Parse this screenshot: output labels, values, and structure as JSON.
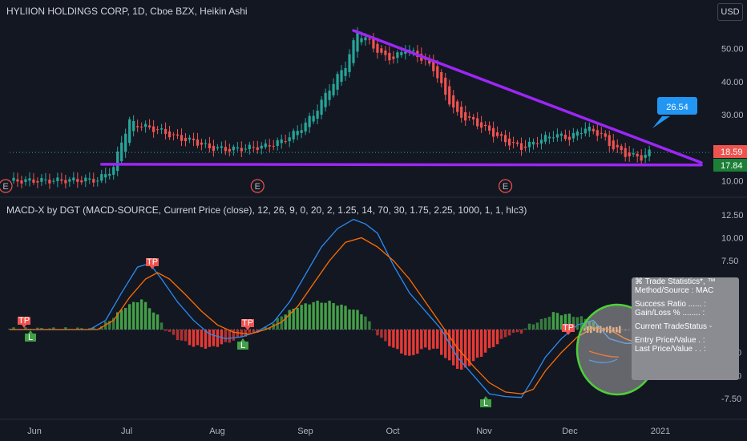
{
  "header": {
    "title": "HYLIION HOLDINGS CORP, 1D, Cboe BZX, Heikin Ashi",
    "currency": "USD"
  },
  "indicator": {
    "title": "MACD-X by DGT (MACD-SOURCE, Current Price (close), 12, 26, 9, 0, 20, 2, 1.25, 14, 70, 30, 1.75, 2.25, 1000, 1, 1, hlc3)"
  },
  "colors": {
    "background": "#131722",
    "up_candle": "#26a69a",
    "down_candle": "#ef5350",
    "trendline": "#9c27f5",
    "macd_line": "#2a8bf2",
    "signal_line": "#ff6d00",
    "hist_up": "#43a047",
    "hist_down": "#e53935",
    "callout": "#2196f3",
    "circle": "#4cd137"
  },
  "price_tags": {
    "last": "18.59",
    "support": "17.84",
    "callout": "26.54"
  },
  "stats_panel": {
    "lines": [
      "⌘ Trade Statistics*, ™",
      "Method/Source : MAC",
      "",
      "Success Ratio ...... :",
      "Gain/Loss % ........ :",
      "",
      "Current TradeStatus -",
      "",
      "Entry Price/Value . :",
      "Last Price/Value . . :"
    ]
  },
  "markers": {
    "tp": "TP",
    "long": "L",
    "short": "SL",
    "earnings": "E"
  },
  "chart_data": [
    {
      "type": "candlestick",
      "title": "HYLIION HOLDINGS CORP, 1D, Cboe BZX, Heikin Ashi",
      "x_ticks": [
        "Jun",
        "Jul",
        "Aug",
        "Sep",
        "Oct",
        "Nov",
        "Dec",
        "2021"
      ],
      "y_ticks": [
        "10.00",
        "20.00",
        "30.00",
        "40.00",
        "50.00"
      ],
      "ylim": [
        5,
        58
      ],
      "close_path": [
        [
          0,
          10.0
        ],
        [
          12,
          10.1
        ],
        [
          22,
          10.3
        ],
        [
          24,
          12
        ],
        [
          26,
          14
        ],
        [
          28,
          22
        ],
        [
          30,
          28
        ],
        [
          32,
          27
        ],
        [
          35,
          26
        ],
        [
          38,
          25
        ],
        [
          42,
          23
        ],
        [
          46,
          22
        ],
        [
          50,
          20
        ],
        [
          55,
          19.5
        ],
        [
          60,
          20
        ],
        [
          64,
          20.5
        ],
        [
          68,
          22
        ],
        [
          72,
          25
        ],
        [
          76,
          30
        ],
        [
          80,
          38
        ],
        [
          84,
          45
        ],
        [
          87,
          55
        ],
        [
          90,
          52
        ],
        [
          93,
          48
        ],
        [
          96,
          47
        ],
        [
          99,
          50
        ],
        [
          102,
          48
        ],
        [
          106,
          44
        ],
        [
          109,
          36
        ],
        [
          112,
          30
        ],
        [
          116,
          28
        ],
        [
          120,
          25
        ],
        [
          124,
          22
        ],
        [
          128,
          20
        ],
        [
          132,
          22
        ],
        [
          136,
          24
        ],
        [
          140,
          23
        ],
        [
          144,
          26
        ],
        [
          148,
          24
        ],
        [
          150,
          21
        ],
        [
          154,
          18
        ],
        [
          158,
          17
        ],
        [
          160,
          18.59
        ]
      ],
      "trendlines": [
        {
          "from": [
            86,
            55.5
          ],
          "to": [
            173,
            15.5
          ]
        },
        {
          "from": [
            23,
            15.0
          ],
          "to": [
            173,
            14.8
          ]
        }
      ],
      "earnings_days": [
        0,
        63,
        125
      ],
      "last_price": 18.59,
      "support_price": 17.84,
      "callout_price": 26.54
    },
    {
      "type": "line",
      "title": "MACD-X by DGT (MACD-SOURCE, Current Price (close), 12, 26, 9, 0, 20, 2, 1.25, 14, 70, 30, 1.75, 2.25, 1000, 1, 1, hlc3)",
      "y_ticks": [
        "12.50",
        "10.00",
        "7.50",
        "5.00",
        "2.50",
        "0.00",
        "-2.50",
        "-5.00",
        "-7.50"
      ],
      "ylim": [
        -9.5,
        13.5
      ],
      "series": [
        {
          "name": "",
          "key": "macd",
          "points": [
            [
              0,
              0
            ],
            [
              20,
              0
            ],
            [
              24,
              1
            ],
            [
              28,
              4
            ],
            [
              32,
              6.8
            ],
            [
              35,
              7.2
            ],
            [
              38,
              5.5
            ],
            [
              42,
              3
            ],
            [
              46,
              1
            ],
            [
              50,
              -0.5
            ],
            [
              54,
              -1
            ],
            [
              58,
              -0.8
            ],
            [
              62,
              -0.2
            ],
            [
              66,
              0.8
            ],
            [
              70,
              3
            ],
            [
              74,
              6
            ],
            [
              78,
              9
            ],
            [
              82,
              11
            ],
            [
              86,
              12
            ],
            [
              89,
              11.5
            ],
            [
              92,
              10.5
            ],
            [
              96,
              7
            ],
            [
              100,
              4
            ],
            [
              104,
              2
            ],
            [
              108,
              0
            ],
            [
              112,
              -3
            ],
            [
              116,
              -5
            ],
            [
              120,
              -7
            ],
            [
              124,
              -7.3
            ],
            [
              128,
              -7.4
            ],
            [
              130,
              -6
            ],
            [
              134,
              -3
            ],
            [
              138,
              -1
            ],
            [
              142,
              0.5
            ],
            [
              146,
              1
            ],
            [
              150,
              -1
            ],
            [
              154,
              -1.5
            ],
            [
              160,
              -1.5
            ]
          ]
        },
        {
          "name": "",
          "key": "signal",
          "points": [
            [
              0,
              0
            ],
            [
              22,
              0
            ],
            [
              26,
              1
            ],
            [
              30,
              3.5
            ],
            [
              34,
              5.5
            ],
            [
              37,
              6.2
            ],
            [
              40,
              5.5
            ],
            [
              44,
              3.8
            ],
            [
              48,
              2
            ],
            [
              52,
              0.5
            ],
            [
              56,
              -0.3
            ],
            [
              60,
              -0.5
            ],
            [
              64,
              0
            ],
            [
              68,
              0.8
            ],
            [
              72,
              2.5
            ],
            [
              76,
              5
            ],
            [
              80,
              7.5
            ],
            [
              84,
              9.5
            ],
            [
              88,
              10
            ],
            [
              92,
              9
            ],
            [
              96,
              7.5
            ],
            [
              100,
              5.5
            ],
            [
              104,
              3
            ],
            [
              108,
              0.5
            ],
            [
              112,
              -2
            ],
            [
              116,
              -4
            ],
            [
              120,
              -5.8
            ],
            [
              124,
              -6.8
            ],
            [
              128,
              -7
            ],
            [
              131,
              -6.5
            ],
            [
              134,
              -4.5
            ],
            [
              138,
              -2.5
            ],
            [
              142,
              -0.8
            ],
            [
              146,
              0.2
            ],
            [
              150,
              0
            ],
            [
              154,
              -1
            ],
            [
              160,
              -2
            ]
          ]
        }
      ],
      "histogram_envelope": [
        [
          0,
          0.1
        ],
        [
          22,
          0.1
        ],
        [
          25,
          1
        ],
        [
          29,
          2.5
        ],
        [
          33,
          3.3
        ],
        [
          37,
          1.5
        ],
        [
          39,
          0
        ],
        [
          42,
          -1
        ],
        [
          46,
          -1.8
        ],
        [
          50,
          -2
        ],
        [
          54,
          -1.5
        ],
        [
          58,
          -0.8
        ],
        [
          62,
          -0.2
        ],
        [
          65,
          0.3
        ],
        [
          68,
          1.5
        ],
        [
          72,
          2.5
        ],
        [
          76,
          3
        ],
        [
          80,
          3
        ],
        [
          84,
          2.5
        ],
        [
          87,
          2
        ],
        [
          89,
          1.5
        ],
        [
          91,
          0
        ],
        [
          93,
          -1
        ],
        [
          96,
          -2
        ],
        [
          100,
          -3
        ],
        [
          104,
          -2
        ],
        [
          107,
          -2.2
        ],
        [
          110,
          -3.5
        ],
        [
          113,
          -4.5
        ],
        [
          116,
          -3.5
        ],
        [
          119,
          -2.5
        ],
        [
          122,
          -1.5
        ],
        [
          125,
          -0.5
        ],
        [
          128,
          -0.3
        ],
        [
          130,
          0.5
        ],
        [
          133,
          1
        ],
        [
          136,
          1.8
        ],
        [
          140,
          1.6
        ],
        [
          144,
          1.2
        ],
        [
          146,
          0.7
        ],
        [
          149,
          0
        ],
        [
          152,
          -0.3
        ],
        [
          156,
          0.2
        ],
        [
          160,
          0.2
        ]
      ]
    }
  ]
}
